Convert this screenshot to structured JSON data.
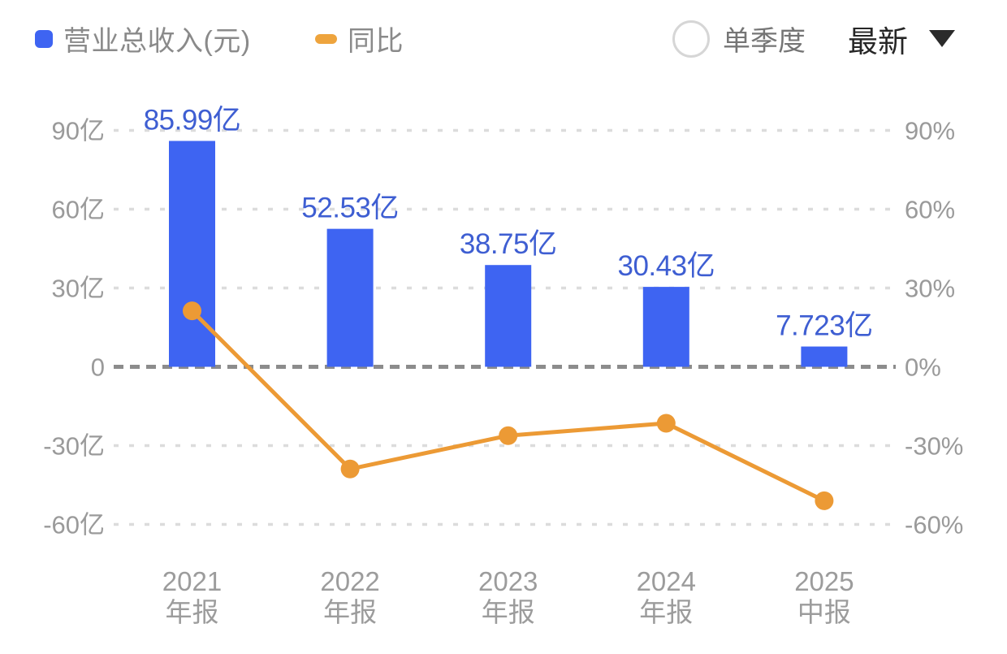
{
  "legend": {
    "revenue_label": "营业总收入(元)",
    "yoy_label": "同比"
  },
  "controls": {
    "radio_label": "单季度",
    "radio_checked": false,
    "dropdown_value": "最新",
    "dropdown_icon": "caret-down-icon"
  },
  "colors": {
    "bar_blue": "#3e64f2",
    "value_label_blue": "#3e5ed2",
    "line_orange": "#ec9a35",
    "legend_dash_orange": "#eea43d",
    "axis_text_gray": "#9a9a9a",
    "x_label_gray": "#9c9c9c",
    "zero_line_gray": "#8c8c8c",
    "grid_line_gray": "#dcdcdc"
  },
  "chart_data": {
    "type": "bar",
    "combo": "bar+line",
    "title": "",
    "legend_position": "top-left",
    "grid": "dashed-horizontal",
    "categories": [
      "2021 年报",
      "2022 年报",
      "2023 年报",
      "2024 年报",
      "2025 中报"
    ],
    "category_lines": [
      [
        "2021",
        "年报"
      ],
      [
        "2022",
        "年报"
      ],
      [
        "2023",
        "年报"
      ],
      [
        "2024",
        "年报"
      ],
      [
        "2025",
        "中报"
      ]
    ],
    "series": [
      {
        "name": "营业总收入(元)",
        "type": "bar",
        "axis": "left",
        "unit": "亿",
        "values": [
          85.99,
          52.53,
          38.75,
          30.43,
          7.723
        ],
        "data_labels": [
          "85.99亿",
          "52.53亿",
          "38.75亿",
          "30.43亿",
          "7.723亿"
        ]
      },
      {
        "name": "同比",
        "type": "line",
        "axis": "right",
        "unit": "%",
        "values": [
          21.3,
          -38.9,
          -26.2,
          -21.5,
          -51.0
        ]
      }
    ],
    "left_axis": {
      "ticks": [
        90,
        60,
        30,
        0,
        -30,
        -60
      ],
      "tick_labels": [
        "90亿",
        "60亿",
        "30亿",
        "0",
        "-30亿",
        "-60亿"
      ],
      "range": [
        -75,
        100
      ]
    },
    "right_axis": {
      "ticks": [
        90,
        60,
        30,
        0,
        -30,
        -60
      ],
      "tick_labels": [
        "90%",
        "60%",
        "30%",
        "0%",
        "-30%",
        "-60%"
      ],
      "range": [
        -75,
        100
      ]
    }
  }
}
